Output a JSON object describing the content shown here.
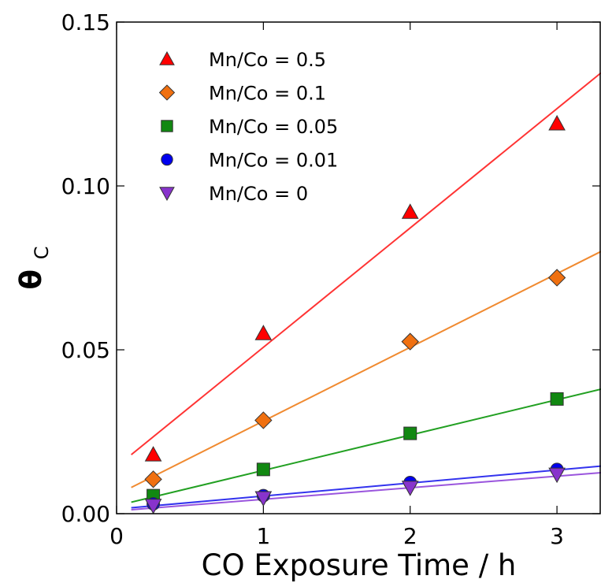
{
  "chart_data": {
    "type": "scatter",
    "title": "",
    "xlabel": "CO Exposure Time / h",
    "ylabel_main": "θ",
    "ylabel_sub": "C",
    "xlim": [
      0.0,
      3.3
    ],
    "ylim": [
      0.0,
      0.15
    ],
    "xticks": [
      0,
      1,
      2,
      3
    ],
    "yticks": [
      0.0,
      0.05,
      0.1,
      0.15
    ],
    "xtick_labels": [
      "0",
      "1",
      "2",
      "3"
    ],
    "ytick_labels": [
      "0.00",
      "0.05",
      "0.10",
      "0.15"
    ],
    "grid": false,
    "legend_position": "top-left",
    "series": [
      {
        "name": "Mn/Co = 0.5",
        "marker": "triangle-up",
        "color": "#ff0000",
        "line_color": "#ff3333",
        "x": [
          0.25,
          1,
          2,
          3
        ],
        "y": [
          0.018,
          0.055,
          0.092,
          0.119
        ],
        "fit": {
          "x": [
            0.1,
            3.3
          ],
          "y": [
            0.018,
            0.1345
          ]
        }
      },
      {
        "name": "Mn/Co = 0.1",
        "marker": "diamond",
        "color": "#f07010",
        "line_color": "#f08a30",
        "x": [
          0.25,
          1,
          2,
          3
        ],
        "y": [
          0.0105,
          0.0285,
          0.0525,
          0.072
        ],
        "fit": {
          "x": [
            0.1,
            3.3
          ],
          "y": [
            0.008,
            0.08
          ]
        }
      },
      {
        "name": "Mn/Co = 0.05",
        "marker": "square",
        "color": "#118811",
        "line_color": "#22a022",
        "x": [
          0.25,
          1,
          2,
          3
        ],
        "y": [
          0.0055,
          0.0135,
          0.0245,
          0.035
        ],
        "fit": {
          "x": [
            0.1,
            3.3
          ],
          "y": [
            0.0035,
            0.038
          ]
        }
      },
      {
        "name": "Mn/Co = 0.01",
        "marker": "circle",
        "color": "#0000ee",
        "line_color": "#3333ee",
        "x": [
          0.25,
          1,
          2,
          3
        ],
        "y": [
          0.003,
          0.0055,
          0.0095,
          0.0135
        ],
        "fit": {
          "x": [
            0.1,
            3.3
          ],
          "y": [
            0.0018,
            0.0145
          ]
        }
      },
      {
        "name": "Mn/Co = 0",
        "marker": "triangle-down",
        "color": "#8833cc",
        "line_color": "#9a55dd",
        "x": [
          0.25,
          1,
          2,
          3
        ],
        "y": [
          0.0025,
          0.0048,
          0.008,
          0.012
        ],
        "fit": {
          "x": [
            0.1,
            3.3
          ],
          "y": [
            0.0012,
            0.0125
          ]
        }
      }
    ]
  }
}
